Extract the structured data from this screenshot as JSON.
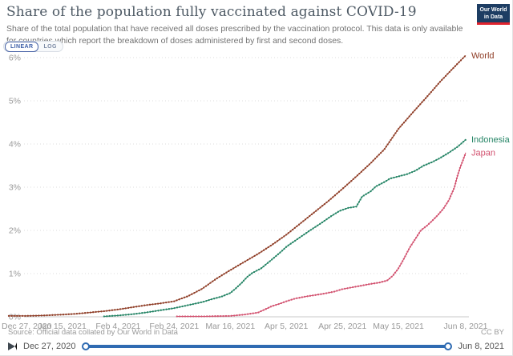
{
  "header": {
    "title": "Share of the population fully vaccinated against COVID-19",
    "subtitle": "Share of the total population that have received all doses prescribed by the vaccination protocol. This data is only available for countries which report the breakdown of doses administered by first and second doses.",
    "logo": {
      "line1": "Our World",
      "line2": "in Data",
      "bg": "#1d3d63",
      "accent": "#e0232e"
    }
  },
  "toolbar": {
    "linear_label": "LINEAR",
    "log_label": "LOG",
    "selected": "LINEAR"
  },
  "chart_data": {
    "type": "line",
    "title": "Share of the population fully vaccinated against COVID-19",
    "xlabel": "",
    "ylabel": "",
    "grid": true,
    "legend_position": "end-of-line-labels",
    "layout": {
      "plot_left": 11,
      "plot_right": 581,
      "plot_top": 12,
      "plot_bottom": 336,
      "grid_left": 30,
      "grid_right": 585
    },
    "x_axis": {
      "max_day": 163,
      "ticks": [
        {
          "day": 0,
          "label": "Dec 27, 2020"
        },
        {
          "day": 19,
          "label": "Jan 15, 2021"
        },
        {
          "day": 39,
          "label": "Feb 4, 2021"
        },
        {
          "day": 59,
          "label": "Feb 24, 2021"
        },
        {
          "day": 79,
          "label": "Mar 16, 2021"
        },
        {
          "day": 99,
          "label": "Apr 5, 2021"
        },
        {
          "day": 119,
          "label": "Apr 25, 2021"
        },
        {
          "day": 139,
          "label": "May 15, 2021"
        },
        {
          "day": 163,
          "label": "Jun 8, 2021"
        }
      ]
    },
    "y_axis": {
      "min": 0,
      "max": 6,
      "ticks": [
        "0%",
        "1%",
        "2%",
        "3%",
        "4%",
        "5%",
        "6%"
      ]
    },
    "series": [
      {
        "name": "World",
        "color": "#8e3c25",
        "points": [
          [
            0,
            0.02
          ],
          [
            6,
            0.02
          ],
          [
            12,
            0.03
          ],
          [
            19,
            0.05
          ],
          [
            24,
            0.07
          ],
          [
            29,
            0.1
          ],
          [
            34,
            0.13
          ],
          [
            39,
            0.17
          ],
          [
            44,
            0.22
          ],
          [
            49,
            0.27
          ],
          [
            54,
            0.31
          ],
          [
            59,
            0.36
          ],
          [
            64,
            0.48
          ],
          [
            69,
            0.65
          ],
          [
            74,
            0.88
          ],
          [
            79,
            1.08
          ],
          [
            84,
            1.27
          ],
          [
            89,
            1.46
          ],
          [
            94,
            1.67
          ],
          [
            99,
            1.9
          ],
          [
            104,
            2.16
          ],
          [
            109,
            2.42
          ],
          [
            114,
            2.68
          ],
          [
            119,
            2.96
          ],
          [
            124,
            3.25
          ],
          [
            129,
            3.55
          ],
          [
            134,
            3.88
          ],
          [
            139,
            4.35
          ],
          [
            144,
            4.72
          ],
          [
            149,
            5.08
          ],
          [
            154,
            5.45
          ],
          [
            158,
            5.72
          ],
          [
            161,
            5.92
          ],
          [
            163,
            6.05
          ]
        ]
      },
      {
        "name": "Indonesia",
        "color": "#248465",
        "points": [
          [
            34,
            0.01
          ],
          [
            39,
            0.03
          ],
          [
            44,
            0.06
          ],
          [
            49,
            0.1
          ],
          [
            54,
            0.15
          ],
          [
            59,
            0.2
          ],
          [
            64,
            0.27
          ],
          [
            69,
            0.34
          ],
          [
            72,
            0.4
          ],
          [
            76,
            0.47
          ],
          [
            79,
            0.55
          ],
          [
            81,
            0.66
          ],
          [
            83,
            0.78
          ],
          [
            85,
            0.92
          ],
          [
            87,
            1.02
          ],
          [
            90,
            1.12
          ],
          [
            93,
            1.28
          ],
          [
            97,
            1.5
          ],
          [
            99,
            1.62
          ],
          [
            103,
            1.8
          ],
          [
            107,
            1.98
          ],
          [
            111,
            2.15
          ],
          [
            115,
            2.33
          ],
          [
            118,
            2.45
          ],
          [
            121,
            2.52
          ],
          [
            124,
            2.55
          ],
          [
            126,
            2.78
          ],
          [
            129,
            2.9
          ],
          [
            131,
            3.02
          ],
          [
            134,
            3.12
          ],
          [
            136,
            3.2
          ],
          [
            139,
            3.25
          ],
          [
            142,
            3.3
          ],
          [
            145,
            3.38
          ],
          [
            148,
            3.5
          ],
          [
            151,
            3.58
          ],
          [
            154,
            3.68
          ],
          [
            157,
            3.8
          ],
          [
            160,
            3.93
          ],
          [
            163,
            4.1
          ]
        ]
      },
      {
        "name": "Japan",
        "color": "#d2516f",
        "points": [
          [
            60,
            0.01
          ],
          [
            70,
            0.01
          ],
          [
            79,
            0.02
          ],
          [
            84,
            0.05
          ],
          [
            89,
            0.1
          ],
          [
            94,
            0.25
          ],
          [
            97,
            0.31
          ],
          [
            99,
            0.36
          ],
          [
            102,
            0.42
          ],
          [
            106,
            0.47
          ],
          [
            111,
            0.52
          ],
          [
            116,
            0.58
          ],
          [
            119,
            0.64
          ],
          [
            124,
            0.7
          ],
          [
            129,
            0.76
          ],
          [
            132,
            0.79
          ],
          [
            135,
            0.84
          ],
          [
            137,
            0.95
          ],
          [
            139,
            1.12
          ],
          [
            141,
            1.35
          ],
          [
            143,
            1.6
          ],
          [
            145,
            1.8
          ],
          [
            147,
            2.0
          ],
          [
            149,
            2.1
          ],
          [
            151,
            2.22
          ],
          [
            153,
            2.35
          ],
          [
            155,
            2.5
          ],
          [
            157,
            2.7
          ],
          [
            159,
            3.0
          ],
          [
            160,
            3.25
          ],
          [
            161,
            3.45
          ],
          [
            162,
            3.62
          ],
          [
            163,
            3.8
          ]
        ]
      }
    ]
  },
  "footer": {
    "source": "Source: Official data collated by Our World in Data",
    "license": "CC BY",
    "timeline": {
      "start_label": "Dec 27, 2020",
      "end_label": "Jun 8, 2021",
      "track_color": "#2f6bb2"
    }
  }
}
